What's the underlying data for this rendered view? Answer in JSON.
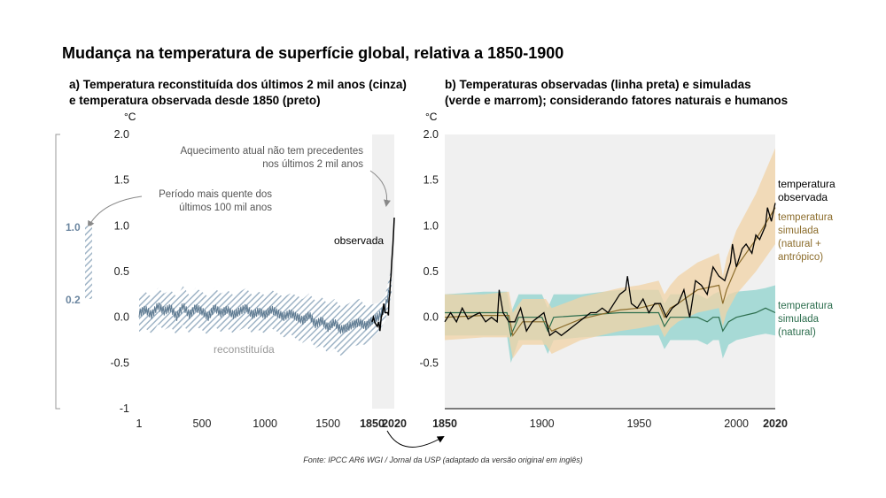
{
  "title": "Mudança na temperatura de superfície global, relativa a 1850-1900",
  "source": "Fonte: IPCC AR6 WGI / Jornal da USP (adaptado da versão original em inglês)",
  "colors": {
    "recon": "#9fb4c6",
    "recon_line": "#5e7a91",
    "observed": "#000000",
    "human": "#8c6d2c",
    "human_band": "#f2d3a5",
    "natural": "#2d6e4e",
    "natural_band": "#8fd3cd",
    "shade": "#f0f0f0",
    "annotation": "#555555",
    "range_bar": "#9fb4c6"
  },
  "chart_data": [
    {
      "type": "line",
      "title": "a) Temperatura reconstituída dos últimos 2 mil anos (cinza)",
      "title_line2": "e temperatura observada desde 1850 (preto)",
      "ylabel": "°C",
      "ylim": [
        -1,
        2
      ],
      "xlim": [
        1,
        2020
      ],
      "yticks": [
        "2.0",
        "1.5",
        "1.0",
        "0.5",
        "0.0",
        "-0.5",
        "-1"
      ],
      "xticks": [
        "1",
        "500",
        "1000",
        "1500",
        "1850",
        "2020"
      ],
      "shaded_period": [
        1850,
        2020
      ],
      "series": [
        {
          "name": "reconstituída",
          "x": [
            1,
            50,
            100,
            150,
            200,
            250,
            300,
            350,
            400,
            450,
            500,
            550,
            600,
            650,
            700,
            750,
            800,
            850,
            900,
            950,
            1000,
            1050,
            1100,
            1150,
            1200,
            1250,
            1300,
            1350,
            1400,
            1450,
            1500,
            1550,
            1600,
            1650,
            1700,
            1750,
            1800,
            1850,
            1900,
            1950,
            2000
          ],
          "y": [
            0.04,
            0.08,
            0.02,
            0.12,
            0.06,
            0.1,
            0.0,
            0.12,
            0.02,
            0.1,
            0.06,
            0.0,
            0.1,
            0.04,
            0.08,
            0.02,
            0.06,
            0.1,
            0.02,
            0.06,
            0.02,
            0.08,
            0.04,
            0.0,
            0.04,
            0.0,
            -0.04,
            0.02,
            -0.08,
            -0.04,
            -0.12,
            -0.06,
            -0.14,
            -0.12,
            -0.08,
            -0.06,
            -0.1,
            -0.04,
            0.0,
            0.1,
            0.4
          ],
          "band_lower": [
            -0.16,
            -0.12,
            -0.18,
            -0.08,
            -0.14,
            -0.1,
            -0.2,
            -0.08,
            -0.18,
            -0.1,
            -0.14,
            -0.2,
            -0.1,
            -0.16,
            -0.12,
            -0.18,
            -0.14,
            -0.1,
            -0.18,
            -0.14,
            -0.18,
            -0.12,
            -0.16,
            -0.22,
            -0.18,
            -0.24,
            -0.28,
            -0.22,
            -0.34,
            -0.3,
            -0.4,
            -0.34,
            -0.42,
            -0.38,
            -0.32,
            -0.3,
            -0.3,
            -0.22,
            -0.16,
            -0.04,
            0.25
          ],
          "band_upper": [
            0.24,
            0.28,
            0.22,
            0.32,
            0.26,
            0.3,
            0.22,
            0.34,
            0.24,
            0.32,
            0.28,
            0.22,
            0.32,
            0.26,
            0.3,
            0.24,
            0.28,
            0.32,
            0.24,
            0.28,
            0.24,
            0.3,
            0.26,
            0.22,
            0.26,
            0.24,
            0.2,
            0.26,
            0.18,
            0.22,
            0.14,
            0.2,
            0.12,
            0.14,
            0.18,
            0.2,
            0.12,
            0.14,
            0.16,
            0.24,
            0.55
          ]
        },
        {
          "name": "observada",
          "x": [
            1850,
            1860,
            1870,
            1880,
            1890,
            1900,
            1910,
            1920,
            1930,
            1940,
            1950,
            1960,
            1970,
            1975,
            1980,
            1985,
            1990,
            1995,
            2000,
            2005,
            2010,
            2015,
            2020
          ],
          "y": [
            -0.05,
            0.0,
            -0.05,
            -0.08,
            -0.1,
            -0.05,
            -0.15,
            0.0,
            0.05,
            0.15,
            0.05,
            0.05,
            0.05,
            0.02,
            0.2,
            0.25,
            0.4,
            0.45,
            0.6,
            0.7,
            0.8,
            0.95,
            1.09
          ]
        }
      ],
      "annotations": {
        "label_reconstituida": "reconstituída",
        "label_observada": "observada",
        "aquecimento_l1": "Aquecimento atual não tem precedentes",
        "aquecimento_l2": "nos últimos 2 mil anos",
        "periodo_l1": "Período mais quente dos",
        "periodo_l2": "últimos 100 mil anos"
      },
      "warm_period_range": {
        "lower": 0.2,
        "upper": 1.0,
        "label_upper": "1.0",
        "label_lower": "0.2"
      }
    },
    {
      "type": "line",
      "title": "b) Temperaturas observadas (linha preta) e simuladas",
      "title_line2": "(verde e marrom); considerando fatores naturais e humanos",
      "ylabel": "°C",
      "ylim": [
        -1,
        2
      ],
      "xlim": [
        1850,
        2020
      ],
      "yticks": [
        "2.0",
        "1.5",
        "1.0",
        "0.5",
        "0.0",
        "-0.5"
      ],
      "xticks": [
        "1850",
        "1900",
        "1950",
        "2000",
        "2020"
      ],
      "series": [
        {
          "name": "temperatura observada",
          "x": [
            1850,
            1853,
            1856,
            1859,
            1862,
            1865,
            1868,
            1871,
            1874,
            1877,
            1878,
            1880,
            1883,
            1886,
            1889,
            1892,
            1895,
            1898,
            1901,
            1904,
            1907,
            1910,
            1913,
            1916,
            1919,
            1922,
            1925,
            1928,
            1931,
            1934,
            1937,
            1940,
            1943,
            1944,
            1946,
            1949,
            1952,
            1955,
            1958,
            1961,
            1964,
            1967,
            1970,
            1973,
            1976,
            1979,
            1982,
            1985,
            1988,
            1991,
            1994,
            1997,
            1998,
            2000,
            2003,
            2005,
            2008,
            2010,
            2012,
            2015,
            2016,
            2018,
            2020
          ],
          "y": [
            -0.05,
            0.05,
            -0.05,
            0.1,
            -0.02,
            0.02,
            0.05,
            -0.05,
            0.0,
            -0.05,
            0.3,
            0.05,
            -0.05,
            -0.05,
            0.1,
            -0.15,
            -0.05,
            0.0,
            0.05,
            -0.2,
            -0.15,
            -0.2,
            -0.15,
            -0.1,
            -0.05,
            0.0,
            0.05,
            0.05,
            0.1,
            0.05,
            0.15,
            0.25,
            0.3,
            0.45,
            0.15,
            0.1,
            0.2,
            0.05,
            0.15,
            0.15,
            0.0,
            0.1,
            0.15,
            0.3,
            0.0,
            0.4,
            0.35,
            0.25,
            0.55,
            0.45,
            0.4,
            0.6,
            0.8,
            0.55,
            0.75,
            0.8,
            0.7,
            0.9,
            0.85,
            1.0,
            1.2,
            1.05,
            1.25
          ]
        },
        {
          "name": "temperatura simulada (natural + antrópico)",
          "x": [
            1850,
            1870,
            1883,
            1885,
            1890,
            1902,
            1905,
            1920,
            1940,
            1950,
            1960,
            1963,
            1966,
            1970,
            1980,
            1991,
            1993,
            1995,
            2000,
            2010,
            2020
          ],
          "y": [
            0.0,
            0.02,
            0.02,
            -0.2,
            -0.05,
            -0.05,
            -0.15,
            -0.02,
            0.08,
            0.1,
            0.15,
            0.0,
            0.1,
            0.15,
            0.3,
            0.35,
            0.15,
            0.3,
            0.55,
            0.85,
            1.2
          ],
          "band_lower": [
            -0.25,
            -0.22,
            -0.22,
            -0.45,
            -0.3,
            -0.3,
            -0.4,
            -0.25,
            -0.15,
            -0.12,
            -0.08,
            -0.22,
            -0.12,
            -0.05,
            0.05,
            0.1,
            -0.1,
            0.05,
            0.25,
            0.5,
            0.8
          ],
          "band_upper": [
            0.25,
            0.25,
            0.28,
            0.05,
            0.2,
            0.2,
            0.1,
            0.22,
            0.32,
            0.35,
            0.4,
            0.25,
            0.35,
            0.45,
            0.6,
            0.7,
            0.45,
            0.65,
            0.95,
            1.35,
            1.85
          ]
        },
        {
          "name": "temperatura simulada (natural)",
          "x": [
            1850,
            1870,
            1882,
            1884,
            1888,
            1900,
            1903,
            1906,
            1920,
            1940,
            1960,
            1963,
            1966,
            1980,
            1985,
            1988,
            1991,
            1993,
            1996,
            2000,
            2010,
            2015,
            2020
          ],
          "y": [
            0.05,
            0.05,
            0.05,
            -0.2,
            0.0,
            0.0,
            -0.15,
            0.0,
            0.02,
            0.05,
            0.05,
            -0.1,
            0.0,
            0.0,
            -0.05,
            0.0,
            0.0,
            -0.15,
            -0.05,
            0.0,
            0.05,
            0.1,
            0.05
          ],
          "band_lower": [
            -0.2,
            -0.2,
            -0.2,
            -0.5,
            -0.25,
            -0.25,
            -0.4,
            -0.25,
            -0.22,
            -0.2,
            -0.2,
            -0.35,
            -0.25,
            -0.25,
            -0.3,
            -0.25,
            -0.25,
            -0.45,
            -0.3,
            -0.25,
            -0.2,
            -0.18,
            -0.2
          ],
          "band_upper": [
            0.25,
            0.28,
            0.28,
            0.05,
            0.25,
            0.25,
            0.1,
            0.25,
            0.25,
            0.3,
            0.3,
            0.15,
            0.25,
            0.25,
            0.2,
            0.25,
            0.28,
            0.15,
            0.25,
            0.28,
            0.3,
            0.32,
            0.35
          ]
        }
      ],
      "legend": {
        "observada_l1": "temperatura",
        "observada_l2": "observada",
        "humana_l1": "temperatura",
        "humana_l2": "simulada",
        "humana_l3": "(natural +",
        "humana_l4": "antrópico)",
        "natural_l1": "temperatura",
        "natural_l2": "simulada",
        "natural_l3": "(natural)"
      }
    }
  ]
}
